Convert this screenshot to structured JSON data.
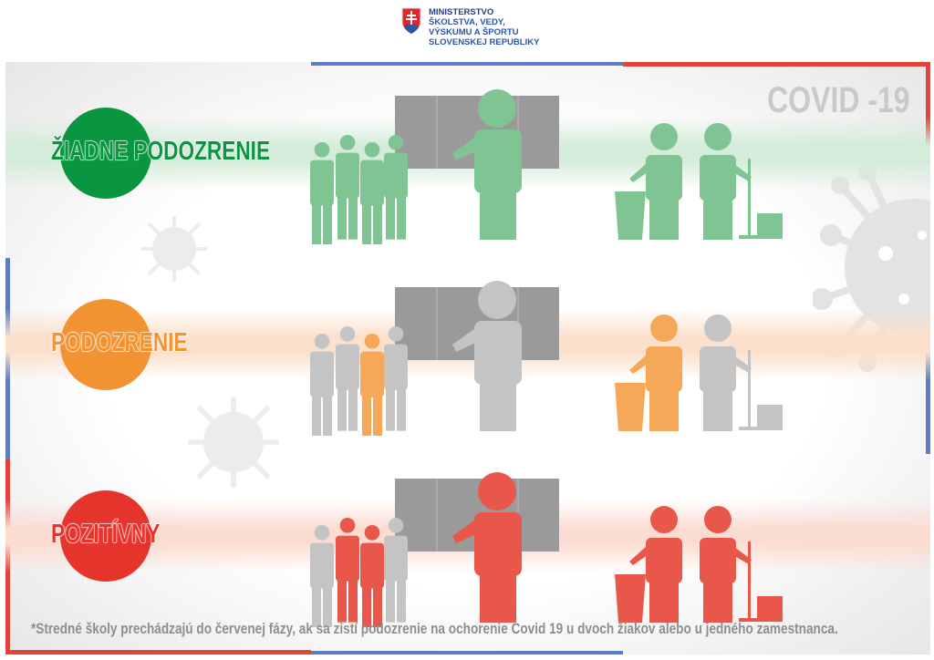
{
  "logo": {
    "lines": [
      "MINISTERSTVO",
      "ŠKOLSTVA, VEDY,",
      "VÝSKUMU A ŠPORTU",
      "SLOVENSKEJ REPUBLIKY"
    ]
  },
  "title": "COVID -19",
  "colors": {
    "green": "#0a9640",
    "green_light": "#7fc492",
    "orange": "#f29332",
    "orange_light": "#f5a858",
    "red": "#e4342c",
    "red_light": "#e8574a",
    "gray": "#c4c4c4",
    "board": "#9a9a9a",
    "blue_border": "#5b7dc2",
    "red_border": "#e0443a"
  },
  "rows": [
    {
      "label": "ŽIADNE PODOZRENIE",
      "circle": "#0a9640",
      "text_color": "#0a9640",
      "band": "#d4ecd9",
      "kids": [
        "#7fc492",
        "#7fc492",
        "#7fc492",
        "#7fc492"
      ],
      "teacher": "#7fc492",
      "cleaner": "#7fc492",
      "janitor": "#7fc492"
    },
    {
      "label": "PODOZRENIE",
      "circle": "#f29332",
      "text_color": "#f29332",
      "band": "#fbe0cc",
      "kids": [
        "#c4c4c4",
        "#c4c4c4",
        "#f5a858",
        "#c4c4c4"
      ],
      "teacher": "#c4c4c4",
      "cleaner": "#f5a858",
      "janitor": "#c4c4c4"
    },
    {
      "label": "POZITÍVNY",
      "circle": "#e4342c",
      "text_color": "#e4342c",
      "band": "#fbdcd2",
      "kids": [
        "#c4c4c4",
        "#e8574a",
        "#e8574a",
        "#c4c4c4"
      ],
      "teacher": "#e8574a",
      "cleaner": "#e8574a",
      "janitor": "#e8574a"
    }
  ],
  "footer": "*Stredné školy prechádzajú do červenej fázy, ak sa zistí podozrenie na ochorenie Covid 19 u dvoch žiakov alebo u jedného zamestnanca."
}
